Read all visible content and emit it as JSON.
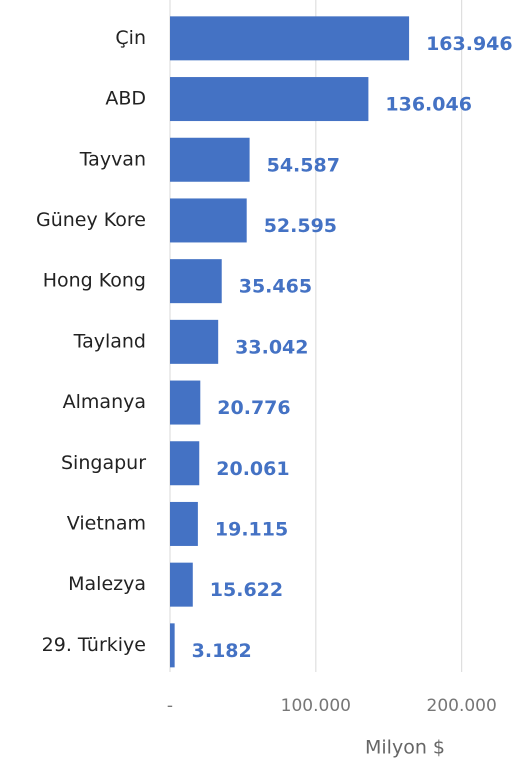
{
  "chart_data": {
    "type": "hbar",
    "categories": [
      "Çin",
      "ABD",
      "Tayvan",
      "Güney Kore",
      "Hong Kong",
      "Tayland",
      "Almanya",
      "Singapur",
      "Vietnam",
      "Malezya",
      "29. Türkiye"
    ],
    "values": [
      163946,
      136046,
      54587,
      52595,
      35465,
      33042,
      20776,
      20061,
      19115,
      15622,
      3182
    ],
    "value_labels": [
      "163.946",
      "136.046",
      "54.587",
      "52.595",
      "35.465",
      "33.042",
      "20.776",
      "20.061",
      "19.115",
      "15.622",
      "3.182"
    ],
    "color": "#4472c4",
    "xlim": [
      0,
      240000
    ],
    "xticks": [
      {
        "value": 0,
        "label": "-"
      },
      {
        "value": 100000,
        "label": "100.000"
      },
      {
        "value": 200000,
        "label": "200.000"
      }
    ],
    "xlabel": "Milyon $",
    "grid": true
  }
}
